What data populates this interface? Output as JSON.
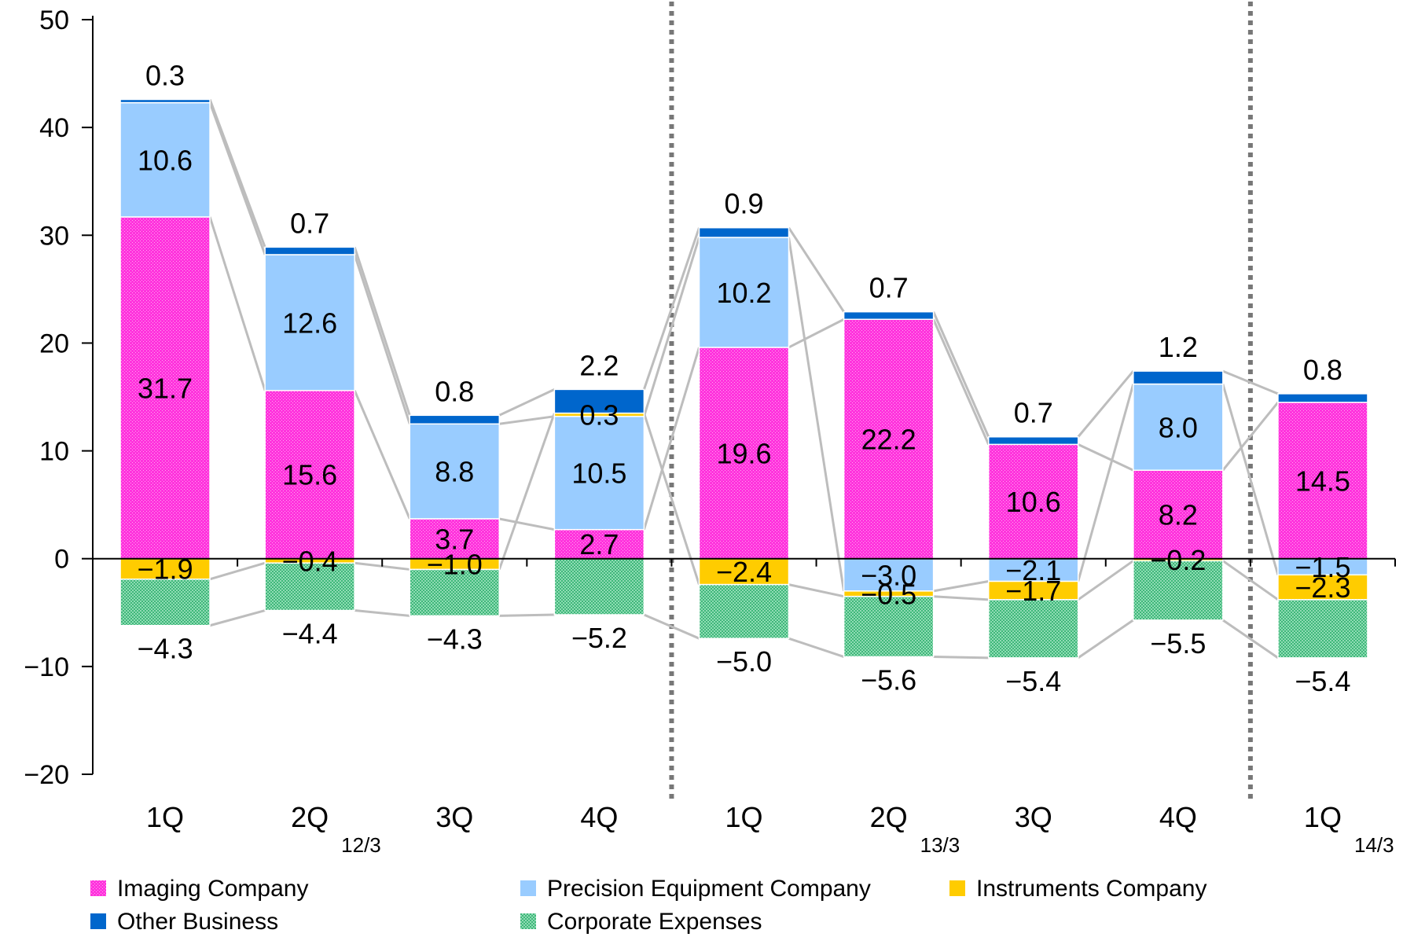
{
  "chart_data": {
    "type": "bar",
    "stacked": true,
    "ylim": [
      -20,
      50
    ],
    "yticks": [
      50,
      40,
      30,
      20,
      10,
      0,
      -10,
      -20
    ],
    "ytick_labels": [
      "50",
      "40",
      "30",
      "20",
      "10",
      "0",
      "−10",
      "−20"
    ],
    "categories": [
      "1Q",
      "2Q",
      "3Q",
      "4Q",
      "1Q",
      "2Q",
      "3Q",
      "4Q",
      "1Q"
    ],
    "period_labels": [
      {
        "label": "12/3",
        "after_index": 1
      },
      {
        "label": "13/3",
        "after_index": 5
      },
      {
        "label": "14/3",
        "after_index": 8
      }
    ],
    "period_dividers_after_index": [
      3,
      7
    ],
    "series": [
      {
        "name": "Imaging Company",
        "color": "#ff33dd",
        "pattern": "dots",
        "values": [
          31.7,
          15.6,
          3.7,
          2.7,
          19.6,
          22.2,
          10.6,
          8.2,
          14.5
        ]
      },
      {
        "name": "Precision Equipment Company",
        "color": "#99ccff",
        "pattern": "solid",
        "values": [
          10.6,
          12.6,
          8.8,
          10.5,
          10.2,
          -3.0,
          -2.1,
          8.0,
          -1.5
        ]
      },
      {
        "name": "Instruments Company",
        "color": "#ffcc00",
        "pattern": "solid",
        "values": [
          -1.9,
          -0.4,
          -1.0,
          0.3,
          -2.4,
          -0.5,
          -1.7,
          -0.2,
          -2.3
        ]
      },
      {
        "name": "Other Business",
        "color": "#0066cc",
        "pattern": "solid",
        "values": [
          0.3,
          0.7,
          0.8,
          2.2,
          0.9,
          0.7,
          0.7,
          1.2,
          0.8
        ]
      },
      {
        "name": "Corporate Expenses",
        "color": "#66cc99",
        "pattern": "dots",
        "values": [
          -4.3,
          -4.4,
          -4.3,
          -5.2,
          -5.0,
          -5.6,
          -5.4,
          -5.5,
          -5.4
        ]
      }
    ],
    "data_labels": [
      [
        {
          "s": 0,
          "text": "31.7"
        },
        {
          "s": 1,
          "text": "10.6"
        },
        {
          "s": 2,
          "text": "−1.9"
        },
        {
          "s": 3,
          "text": "0.3"
        },
        {
          "s": 4,
          "text": "−4.3"
        }
      ],
      [
        {
          "s": 0,
          "text": "15.6"
        },
        {
          "s": 1,
          "text": "12.6"
        },
        {
          "s": 2,
          "text": "−0.4"
        },
        {
          "s": 3,
          "text": "0.7"
        },
        {
          "s": 4,
          "text": "−4.4"
        }
      ],
      [
        {
          "s": 0,
          "text": "3.7"
        },
        {
          "s": 1,
          "text": "8.8"
        },
        {
          "s": 2,
          "text": "−1.0"
        },
        {
          "s": 3,
          "text": "0.8"
        },
        {
          "s": 4,
          "text": "−4.3"
        }
      ],
      [
        {
          "s": 0,
          "text": "2.7"
        },
        {
          "s": 1,
          "text": "10.5"
        },
        {
          "s": 2,
          "text": "0.3"
        },
        {
          "s": 3,
          "text": "2.2"
        },
        {
          "s": 4,
          "text": "−5.2"
        }
      ],
      [
        {
          "s": 0,
          "text": "19.6"
        },
        {
          "s": 1,
          "text": "10.2"
        },
        {
          "s": 2,
          "text": "−2.4"
        },
        {
          "s": 3,
          "text": "0.9"
        },
        {
          "s": 4,
          "text": "−5.0"
        }
      ],
      [
        {
          "s": 0,
          "text": "22.2"
        },
        {
          "s": 1,
          "text": "−3.0"
        },
        {
          "s": 2,
          "text": "−0.5"
        },
        {
          "s": 3,
          "text": "0.7"
        },
        {
          "s": 4,
          "text": "−5.6"
        }
      ],
      [
        {
          "s": 0,
          "text": "10.6"
        },
        {
          "s": 1,
          "text": "−2.1"
        },
        {
          "s": 2,
          "text": "−1.7"
        },
        {
          "s": 3,
          "text": "0.7"
        },
        {
          "s": 4,
          "text": "−5.4"
        }
      ],
      [
        {
          "s": 0,
          "text": "8.2"
        },
        {
          "s": 1,
          "text": "8.0"
        },
        {
          "s": 2,
          "text": "−0.2"
        },
        {
          "s": 3,
          "text": "1.2"
        },
        {
          "s": 4,
          "text": "−5.5"
        }
      ],
      [
        {
          "s": 0,
          "text": "14.5"
        },
        {
          "s": 1,
          "text": "−1.5"
        },
        {
          "s": 2,
          "text": "−2.3"
        },
        {
          "s": 3,
          "text": "0.8"
        },
        {
          "s": 4,
          "text": "−5.4"
        }
      ]
    ],
    "grid": false,
    "connector_lines": true,
    "legend_position": "bottom"
  }
}
